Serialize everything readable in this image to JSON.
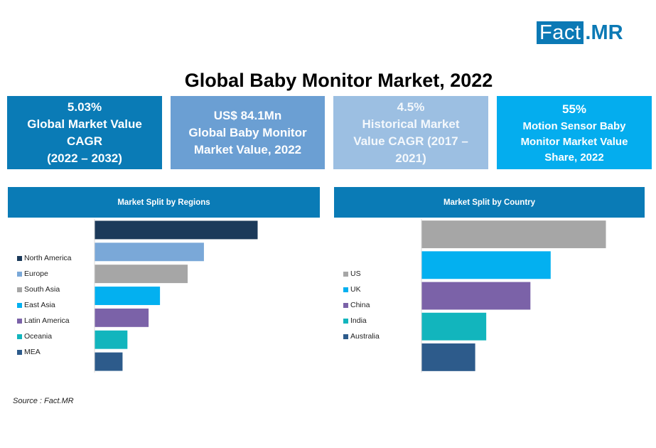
{
  "logo": {
    "part1": "Fact",
    "part2": ".MR"
  },
  "title": "Global Baby Monitor Market, 2022",
  "kpis": [
    {
      "lines": [
        "5.03%",
        "Global Market Value",
        "CAGR",
        "(2022 – 2032)"
      ]
    },
    {
      "lines": [
        "US$ 84.1Mn",
        "Global Baby Monitor",
        "Market Value, 2022"
      ]
    },
    {
      "lines": [
        "4.5%",
        "Historical Market",
        "Value CAGR (2017 –",
        "2021)"
      ]
    },
    {
      "lines": [
        "55%",
        "Motion Sensor Baby",
        "Monitor Market Value",
        "Share, 2022"
      ]
    }
  ],
  "source": "Source : Fact.MR",
  "chart_data": [
    {
      "type": "bar",
      "orientation": "horizontal",
      "title": "Market Split by Regions",
      "categories": [
        "North America",
        "Europe",
        "South Asia",
        "East Asia",
        "Latin America",
        "Oceania",
        "MEA"
      ],
      "values": [
        100,
        67,
        57,
        40,
        33,
        20,
        17
      ],
      "value_note": "relative index (largest = 100); no axis values shown",
      "colors": [
        "#1c3a5a",
        "#7aa8d8",
        "#a6a6a6",
        "#03b0f0",
        "#7b62a8",
        "#12b5bd",
        "#2d5b8b"
      ],
      "legend_position": "left",
      "xlabel": "",
      "ylabel": "",
      "grid": false
    },
    {
      "type": "bar",
      "orientation": "horizontal",
      "title": "Market Split by Country",
      "categories": [
        "US",
        "UK",
        "China",
        "India",
        "Australia"
      ],
      "values": [
        100,
        70,
        59,
        35,
        29
      ],
      "value_note": "relative index (largest = 100); no axis values shown",
      "colors": [
        "#a6a6a6",
        "#03b0f0",
        "#7b62a8",
        "#12b5bd",
        "#2d5b8b"
      ],
      "legend_position": "left",
      "xlabel": "",
      "ylabel": "",
      "grid": false
    }
  ]
}
